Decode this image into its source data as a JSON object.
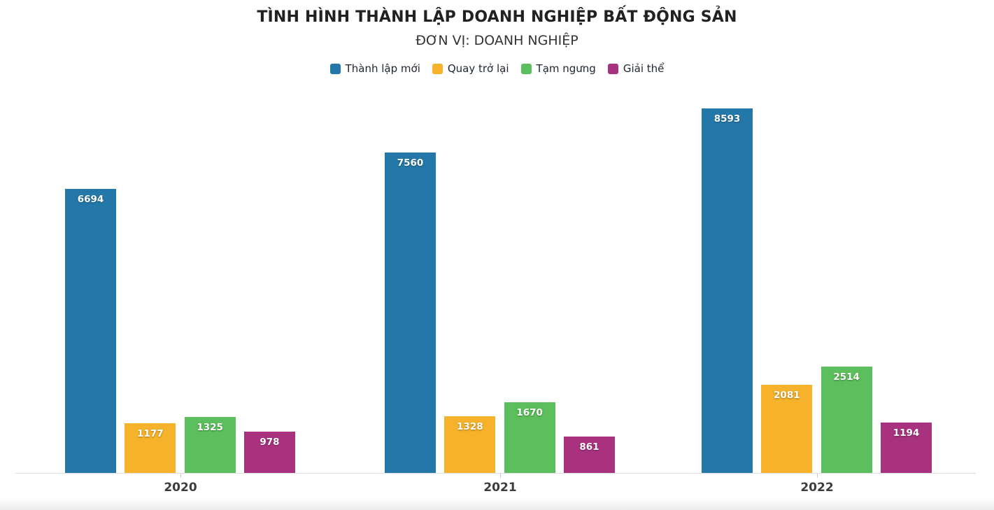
{
  "header": {
    "title": "TÌNH HÌNH THÀNH LẬP DOANH NGHIỆP BẤT ĐỘNG SẢN",
    "subtitle": "ĐƠN VỊ: DOANH NGHIỆP"
  },
  "colors": {
    "new_established": "#2478A9",
    "returned": "#F5B22A",
    "suspended": "#5CBE5C",
    "dissolved": "#A8327E",
    "axis_line": "#dddddd",
    "label_text": "#3c3c3c"
  },
  "chart_data": {
    "type": "bar",
    "title": "TÌNH HÌNH THÀNH LẬP DOANH NGHIỆP BẤT ĐỘNG SẢN",
    "subtitle": "ĐƠN VỊ: DOANH NGHIỆP",
    "categories": [
      "2020",
      "2021",
      "2022"
    ],
    "series": [
      {
        "name": "Thành lập mới",
        "color": "#2478A9",
        "values": [
          6694,
          7560,
          8593
        ]
      },
      {
        "name": "Quay trở lại",
        "color": "#F5B22A",
        "values": [
          1177,
          1328,
          2081
        ]
      },
      {
        "name": "Tạm ngưng",
        "color": "#5CBE5C",
        "values": [
          1325,
          1670,
          2514
        ]
      },
      {
        "name": "Giải thể",
        "color": "#A8327E",
        "values": [
          978,
          861,
          1194
        ]
      }
    ],
    "value_labels": "inside-top, white bold",
    "xlabel": "",
    "ylabel": "",
    "ylim": [
      0,
      8940
    ],
    "grid": false,
    "y_axis_visible": false,
    "legend_position": "top"
  }
}
